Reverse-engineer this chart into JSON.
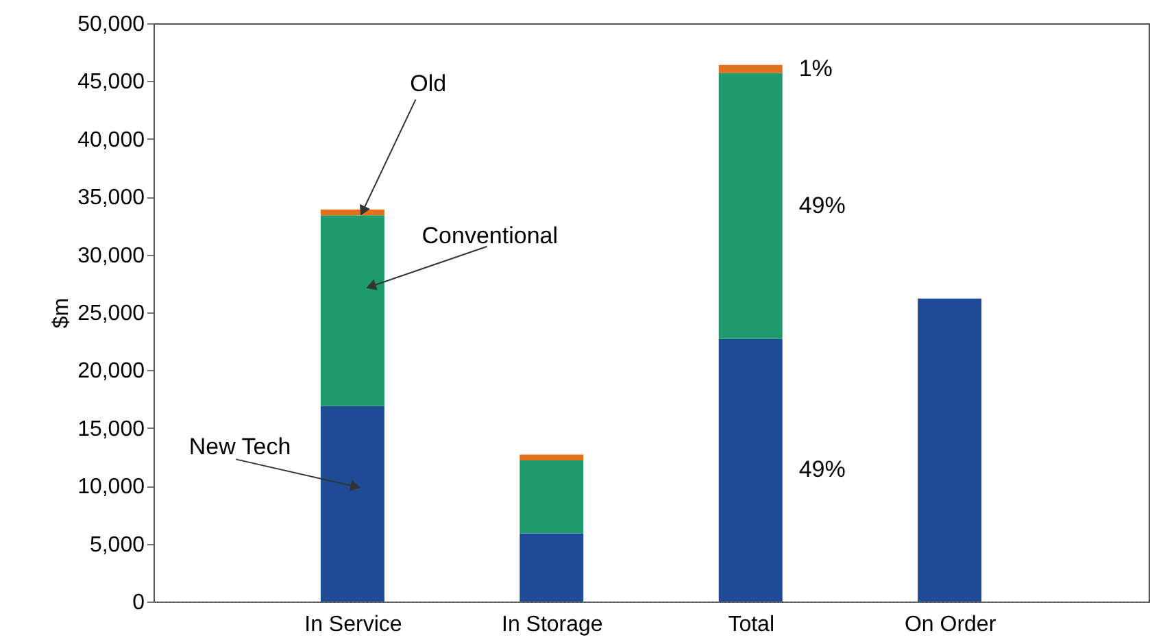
{
  "chart_data": {
    "type": "bar",
    "stacked": true,
    "ylabel": "$m",
    "categories": [
      "In Service",
      "In Storage",
      "Total",
      "On Order"
    ],
    "series": [
      {
        "name": "New Tech",
        "color": "#1f4b96",
        "values": [
          16900,
          5900,
          22700,
          26200
        ]
      },
      {
        "name": "Conventional",
        "color": "#1f9a6c",
        "values": [
          16500,
          6300,
          23000,
          null
        ]
      },
      {
        "name": "Old",
        "color": "#e2711d",
        "values": [
          500,
          500,
          700,
          null
        ]
      }
    ],
    "annotations": [
      {
        "text": "1%",
        "x": "Total",
        "y": 46050
      },
      "49%",
      "49%"
    ],
    "ylim": [
      0,
      50000
    ],
    "yticks": [
      0,
      {
        "value": 5000,
        "label": "5,000"
      },
      {
        "value": 10000,
        "label": "10,000"
      },
      {
        "value": 15000,
        "label": "15,000"
      },
      {
        "value": 20000,
        "label": "20,000"
      },
      {
        "value": 25000,
        "label": "25,000"
      },
      {
        "value": 30000,
        "label": "30,000"
      },
      {
        "value": 35000,
        "label": "35,000"
      },
      {
        "value": 40000,
        "label": "40,000"
      },
      {
        "value": 45000,
        "label": "45,000"
      },
      {
        "value": 50000,
        "label": "50,000"
      }
    ],
    "grid": false,
    "legend": false
  }
}
